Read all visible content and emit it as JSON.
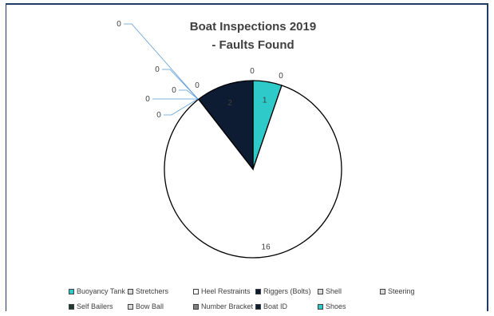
{
  "chart_data": {
    "type": "pie",
    "title_lines": [
      "Boat Inspections 2019",
      "- Faults Found"
    ],
    "categories": [
      "Buoyancy Tank",
      "Stretchers",
      "Heel Restraints",
      "Riggers (Bolts)",
      "Shell",
      "Steering",
      "Self Bailers",
      "Bow Ball",
      "Number Bracket",
      "Boat ID",
      "Shoes"
    ],
    "values": [
      1,
      0,
      16,
      2,
      0,
      0,
      0,
      0,
      0,
      0,
      0
    ],
    "colors": [
      "#2ec9c9",
      "#d9d9d9",
      "#ffffff",
      "#0d1b33",
      "#d9d9d9",
      "#d9d9d9",
      "#1f3b2f",
      "#d9d9d9",
      "#7f7f7f",
      "#0d1b33",
      "#2ec9c9"
    ],
    "data_labels": [
      "1",
      "0",
      "16",
      "2",
      "0",
      "0",
      "0",
      "0",
      "0",
      "0",
      "0"
    ],
    "legend_position": "bottom"
  }
}
